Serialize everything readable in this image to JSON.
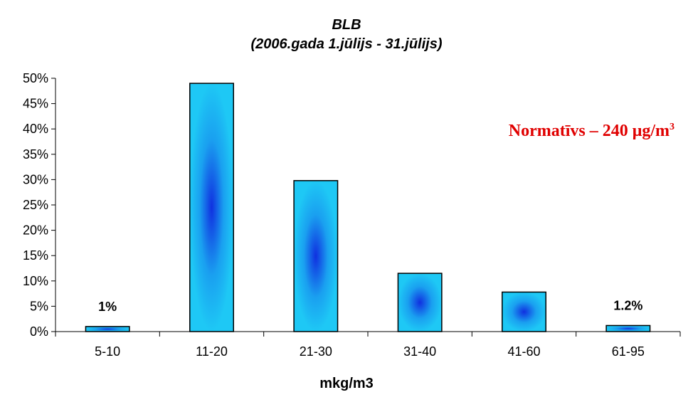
{
  "chart_data": {
    "type": "bar",
    "title": "BLB",
    "subtitle": "(2006.gada 1.jūlijs - 31.jūlijs)",
    "xlabel": "mkg/m3",
    "ylabel": "",
    "categories": [
      "5-10",
      "11-20",
      "21-30",
      "31-40",
      "41-60",
      "61-95"
    ],
    "values": [
      1,
      49,
      29.8,
      11.5,
      7.8,
      1.2
    ],
    "data_labels": [
      "1%",
      "",
      "",
      "",
      "",
      "1.2%"
    ],
    "ylim": [
      0,
      50
    ],
    "yticks": [
      "0%",
      "5%",
      "10%",
      "15%",
      "20%",
      "25%",
      "30%",
      "35%",
      "40%",
      "45%",
      "50%"
    ],
    "grid": false,
    "legend": "none",
    "bar_color": "#1ec8f5",
    "bar_center_color": "#1030e0",
    "annotation": {
      "prefix": "Normatīvs – 240 ",
      "unit_base": "μg/m",
      "unit_exp": "3",
      "color": "#e00000"
    }
  }
}
